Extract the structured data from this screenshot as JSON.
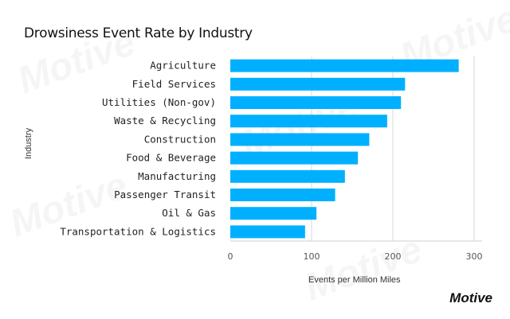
{
  "chart_data": {
    "type": "bar",
    "orientation": "horizontal",
    "title": "Drowsiness Event Rate by Industry",
    "xlabel": "Events per Million Miles",
    "ylabel": "Industry",
    "categories": [
      "Agriculture",
      "Field Services",
      "Utilities (Non-gov)",
      "Waste & Recycling",
      "Construction",
      "Food & Beverage",
      "Manufacturing",
      "Passenger Transit",
      "Oil & Gas",
      "Transportation & Logistics"
    ],
    "values": [
      281,
      215,
      210,
      193,
      171,
      157,
      141,
      129,
      106,
      92
    ],
    "xlim": [
      0,
      305
    ],
    "xticks": [
      0,
      100,
      200,
      300
    ],
    "grid": true,
    "bar_color": "#00b0ff"
  },
  "brand": {
    "logo": "Motive"
  }
}
